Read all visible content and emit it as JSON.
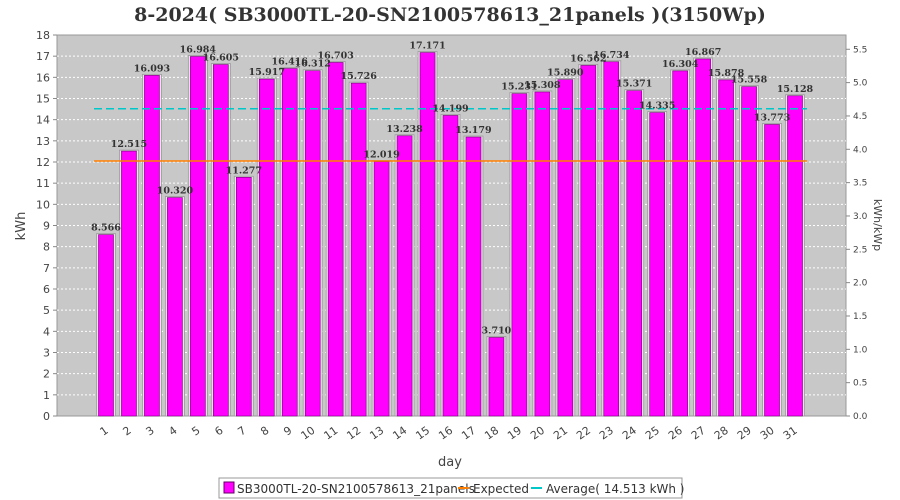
{
  "chart_data": {
    "type": "bar",
    "title": "8-2024( SB3000TL-20-SN2100578613_21panels )(3150Wp)",
    "xlabel": "day",
    "ylabel": "kWh",
    "y2label": "kWh/kWp",
    "ylim": [
      0,
      18
    ],
    "y2lim": [
      0,
      5.714
    ],
    "yticks": [
      "0",
      "1",
      "2",
      "3",
      "4",
      "5",
      "6",
      "7",
      "8",
      "9",
      "10",
      "11",
      "12",
      "13",
      "14",
      "15",
      "16",
      "17",
      "18"
    ],
    "y2ticks": [
      "0.0",
      "0.5",
      "1.0",
      "1.5",
      "2.0",
      "2.5",
      "3.0",
      "3.5",
      "4.0",
      "4.5",
      "5.0",
      "5.5"
    ],
    "grid": true,
    "legend_position": "bottom",
    "categories": [
      "1",
      "2",
      "3",
      "4",
      "5",
      "6",
      "7",
      "8",
      "9",
      "10",
      "11",
      "12",
      "13",
      "14",
      "15",
      "16",
      "17",
      "18",
      "19",
      "20",
      "21",
      "22",
      "23",
      "24",
      "25",
      "26",
      "27",
      "28",
      "29",
      "30",
      "31"
    ],
    "series": [
      {
        "name": "SB3000TL-20-SN2100578613_21panels",
        "type": "bar",
        "color": "#ff00ff",
        "values": [
          8.566,
          12.515,
          16.093,
          10.32,
          16.984,
          16.605,
          11.277,
          15.917,
          16.416,
          16.312,
          16.703,
          15.726,
          12.019,
          13.238,
          17.171,
          14.199,
          13.179,
          3.71,
          15.231,
          15.308,
          15.89,
          16.562,
          16.734,
          15.371,
          14.335,
          16.304,
          16.867,
          15.878,
          15.558,
          13.773,
          15.128
        ],
        "labels": [
          "8.566",
          "12.515",
          "16.093",
          "10.320",
          "16.984",
          "16.605",
          "11.277",
          "15.917",
          "16.416",
          "16.312",
          "16.703",
          "15.726",
          "12.019",
          "13.238",
          "17.171",
          "14.199",
          "13.179",
          "3.710",
          "15.231",
          "15.308",
          "15.890",
          "16.562",
          "16.734",
          "15.371",
          "14.335",
          "16.304",
          "16.867",
          "15.878",
          "15.558",
          "13.773",
          "15.128"
        ]
      },
      {
        "name": "Expected",
        "type": "line",
        "color": "#ff7f00",
        "value": 12.05
      },
      {
        "name": "Average( 14.513 kWh )",
        "type": "line",
        "color": "#00c8c8",
        "value": 14.513
      }
    ]
  }
}
